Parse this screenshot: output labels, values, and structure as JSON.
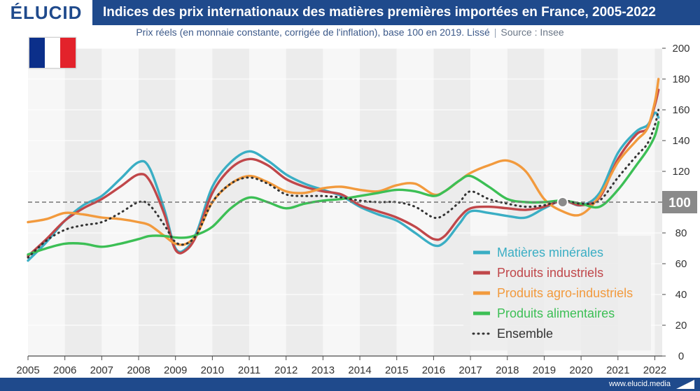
{
  "header": {
    "brand": "ÉLUCID",
    "title": "Indices des prix internationaux des matières premières importées en France, 2005-2022"
  },
  "subtitle": {
    "text": "Prix réels (en monnaie constante, corrigée de l'inflation), base 100 en 2019. Lissé",
    "separator": "|",
    "source": "Source : Insee"
  },
  "flag": {
    "colors": [
      "#0b2f8a",
      "#ffffff",
      "#e3222b"
    ]
  },
  "footer": {
    "url": "www.elucid.media"
  },
  "chart_data": {
    "type": "line",
    "x_ticks": [
      "2005",
      "2006",
      "2007",
      "2008",
      "2009",
      "2010",
      "2011",
      "2012",
      "2013",
      "2014",
      "2015",
      "2016",
      "2017",
      "2018",
      "2019",
      "2020",
      "2021",
      "2022"
    ],
    "xlim": [
      2005,
      2022.2
    ],
    "ylim": [
      0,
      200
    ],
    "y_ticks": [
      0,
      20,
      40,
      60,
      80,
      100,
      120,
      140,
      160,
      180,
      200
    ],
    "y_axis_position": "right",
    "reference_line": {
      "value": 100,
      "label": "100"
    },
    "marker": {
      "x": 2019.5,
      "y": 100
    },
    "legend_position": "bottom-right",
    "series": [
      {
        "name": "Matières minérales",
        "color": "#3aaec4",
        "style": "solid",
        "points": [
          [
            2005,
            62
          ],
          [
            2005.5,
            74
          ],
          [
            2006,
            88
          ],
          [
            2006.5,
            98
          ],
          [
            2007,
            104
          ],
          [
            2007.5,
            115
          ],
          [
            2008,
            126
          ],
          [
            2008.3,
            122
          ],
          [
            2008.7,
            95
          ],
          [
            2009,
            70
          ],
          [
            2009.3,
            70
          ],
          [
            2009.6,
            82
          ],
          [
            2010,
            110
          ],
          [
            2010.5,
            126
          ],
          [
            2011,
            133
          ],
          [
            2011.5,
            127
          ],
          [
            2012,
            118
          ],
          [
            2012.5,
            112
          ],
          [
            2013,
            108
          ],
          [
            2013.5,
            104
          ],
          [
            2014,
            97
          ],
          [
            2014.5,
            92
          ],
          [
            2015,
            88
          ],
          [
            2015.5,
            80
          ],
          [
            2016,
            72
          ],
          [
            2016.3,
            74
          ],
          [
            2016.7,
            86
          ],
          [
            2017,
            94
          ],
          [
            2017.5,
            93
          ],
          [
            2018,
            91
          ],
          [
            2018.5,
            90
          ],
          [
            2019,
            96
          ],
          [
            2019.5,
            101
          ],
          [
            2020,
            98
          ],
          [
            2020.5,
            106
          ],
          [
            2021,
            132
          ],
          [
            2021.5,
            146
          ],
          [
            2021.8,
            150
          ],
          [
            2022,
            158
          ],
          [
            2022.1,
            155
          ]
        ]
      },
      {
        "name": "Produits industriels",
        "color": "#c0474a",
        "style": "solid",
        "points": [
          [
            2005,
            65
          ],
          [
            2005.5,
            76
          ],
          [
            2006,
            88
          ],
          [
            2006.5,
            96
          ],
          [
            2007,
            102
          ],
          [
            2007.5,
            110
          ],
          [
            2008,
            118
          ],
          [
            2008.3,
            114
          ],
          [
            2008.7,
            92
          ],
          [
            2009,
            69
          ],
          [
            2009.3,
            69
          ],
          [
            2009.6,
            80
          ],
          [
            2010,
            106
          ],
          [
            2010.5,
            122
          ],
          [
            2011,
            128
          ],
          [
            2011.5,
            124
          ],
          [
            2012,
            115
          ],
          [
            2012.5,
            110
          ],
          [
            2013,
            107
          ],
          [
            2013.5,
            105
          ],
          [
            2014,
            98
          ],
          [
            2014.5,
            94
          ],
          [
            2015,
            90
          ],
          [
            2015.5,
            84
          ],
          [
            2016,
            76
          ],
          [
            2016.3,
            78
          ],
          [
            2016.7,
            90
          ],
          [
            2017,
            96
          ],
          [
            2017.5,
            97
          ],
          [
            2018,
            96
          ],
          [
            2018.5,
            95
          ],
          [
            2019,
            97
          ],
          [
            2019.5,
            101
          ],
          [
            2020,
            98
          ],
          [
            2020.5,
            103
          ],
          [
            2021,
            128
          ],
          [
            2021.5,
            144
          ],
          [
            2021.8,
            148
          ],
          [
            2022,
            163
          ],
          [
            2022.1,
            173
          ]
        ]
      },
      {
        "name": "Produits agro-industriels",
        "color": "#f29a3d",
        "style": "solid",
        "points": [
          [
            2005,
            87
          ],
          [
            2005.5,
            89
          ],
          [
            2006,
            93
          ],
          [
            2006.5,
            92
          ],
          [
            2007,
            90
          ],
          [
            2007.5,
            89
          ],
          [
            2008,
            87
          ],
          [
            2008.3,
            85
          ],
          [
            2008.7,
            78
          ],
          [
            2009,
            73
          ],
          [
            2009.3,
            73
          ],
          [
            2009.6,
            80
          ],
          [
            2010,
            100
          ],
          [
            2010.5,
            112
          ],
          [
            2011,
            117
          ],
          [
            2011.5,
            113
          ],
          [
            2012,
            107
          ],
          [
            2012.5,
            106
          ],
          [
            2013,
            109
          ],
          [
            2013.5,
            110
          ],
          [
            2014,
            108
          ],
          [
            2014.5,
            107
          ],
          [
            2015,
            111
          ],
          [
            2015.5,
            112
          ],
          [
            2016,
            105
          ],
          [
            2016.3,
            107
          ],
          [
            2016.7,
            114
          ],
          [
            2017,
            119
          ],
          [
            2017.5,
            124
          ],
          [
            2018,
            127
          ],
          [
            2018.5,
            120
          ],
          [
            2019,
            102
          ],
          [
            2019.5,
            94
          ],
          [
            2020,
            92
          ],
          [
            2020.5,
            104
          ],
          [
            2021,
            126
          ],
          [
            2021.5,
            140
          ],
          [
            2021.8,
            148
          ],
          [
            2022,
            165
          ],
          [
            2022.1,
            180
          ]
        ]
      },
      {
        "name": "Produits alimentaires",
        "color": "#3cbf55",
        "style": "solid",
        "points": [
          [
            2005,
            66
          ],
          [
            2005.5,
            70
          ],
          [
            2006,
            73
          ],
          [
            2006.5,
            73
          ],
          [
            2007,
            71
          ],
          [
            2007.5,
            73
          ],
          [
            2008,
            76
          ],
          [
            2008.3,
            78
          ],
          [
            2008.7,
            78
          ],
          [
            2009,
            77
          ],
          [
            2009.3,
            77
          ],
          [
            2009.6,
            79
          ],
          [
            2010,
            84
          ],
          [
            2010.5,
            96
          ],
          [
            2011,
            103
          ],
          [
            2011.5,
            100
          ],
          [
            2012,
            96
          ],
          [
            2012.5,
            99
          ],
          [
            2013,
            101
          ],
          [
            2013.5,
            102
          ],
          [
            2014,
            104
          ],
          [
            2014.5,
            106
          ],
          [
            2015,
            108
          ],
          [
            2015.5,
            107
          ],
          [
            2016,
            104
          ],
          [
            2016.3,
            107
          ],
          [
            2016.7,
            114
          ],
          [
            2017,
            117
          ],
          [
            2017.5,
            110
          ],
          [
            2018,
            102
          ],
          [
            2018.5,
            100
          ],
          [
            2019,
            100
          ],
          [
            2019.5,
            101
          ],
          [
            2020,
            99
          ],
          [
            2020.5,
            97
          ],
          [
            2021,
            108
          ],
          [
            2021.5,
            124
          ],
          [
            2021.8,
            134
          ],
          [
            2022,
            143
          ],
          [
            2022.1,
            152
          ]
        ]
      },
      {
        "name": "Ensemble",
        "color": "#333333",
        "style": "dotted",
        "points": [
          [
            2005,
            64
          ],
          [
            2005.5,
            75
          ],
          [
            2006,
            82
          ],
          [
            2006.5,
            85
          ],
          [
            2007,
            87
          ],
          [
            2007.5,
            93
          ],
          [
            2008,
            100
          ],
          [
            2008.3,
            98
          ],
          [
            2008.7,
            85
          ],
          [
            2009,
            74
          ],
          [
            2009.3,
            73
          ],
          [
            2009.6,
            80
          ],
          [
            2010,
            100
          ],
          [
            2010.5,
            112
          ],
          [
            2011,
            116
          ],
          [
            2011.5,
            112
          ],
          [
            2012,
            105
          ],
          [
            2012.5,
            104
          ],
          [
            2013,
            104
          ],
          [
            2013.5,
            103
          ],
          [
            2014,
            101
          ],
          [
            2014.5,
            100
          ],
          [
            2015,
            100
          ],
          [
            2015.5,
            97
          ],
          [
            2016,
            90
          ],
          [
            2016.3,
            92
          ],
          [
            2016.7,
            100
          ],
          [
            2017,
            107
          ],
          [
            2017.5,
            102
          ],
          [
            2018,
            99
          ],
          [
            2018.5,
            97
          ],
          [
            2019,
            98
          ],
          [
            2019.5,
            101
          ],
          [
            2020,
            99
          ],
          [
            2020.5,
            101
          ],
          [
            2021,
            116
          ],
          [
            2021.5,
            130
          ],
          [
            2021.8,
            138
          ],
          [
            2022,
            150
          ],
          [
            2022.1,
            160
          ]
        ]
      }
    ]
  }
}
